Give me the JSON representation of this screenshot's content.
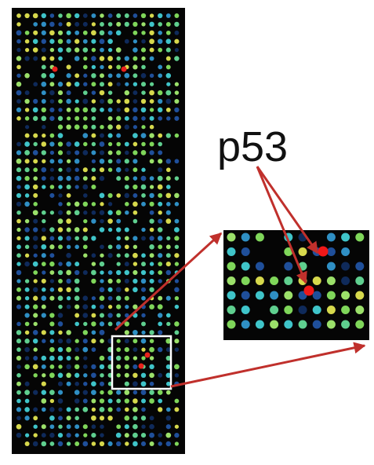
{
  "label": "p53"
}
